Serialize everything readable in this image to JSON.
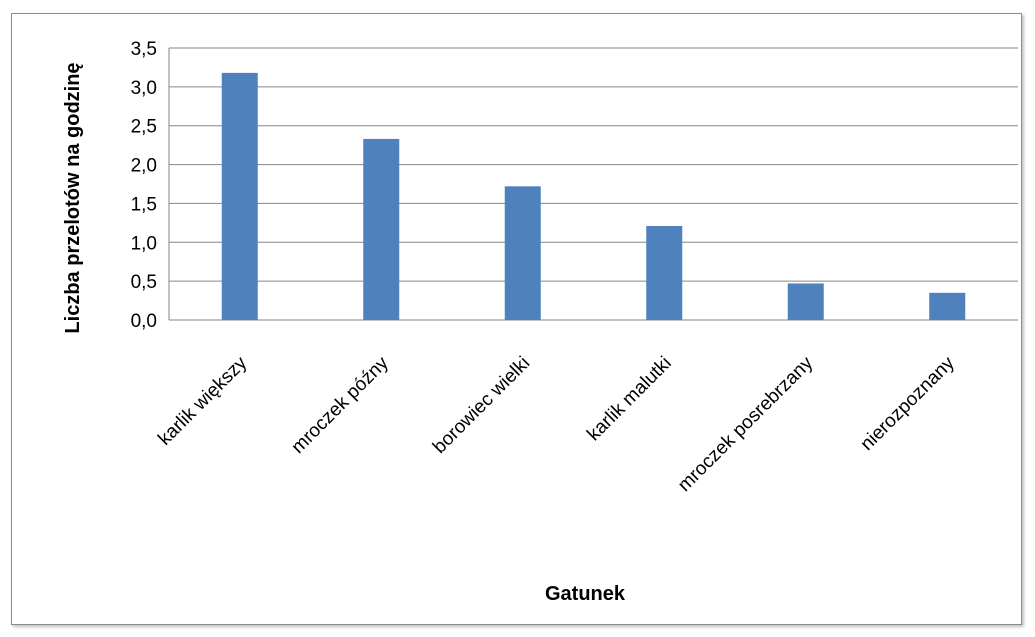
{
  "chart_data": {
    "type": "bar",
    "title": "",
    "xlabel": "Gatunek",
    "ylabel": "Liczba przelotów na godzinę",
    "categories": [
      "karlik większy",
      "mroczek późny",
      "borowiec wielki",
      "karlik malutki",
      "mroczek posrebrzany",
      "nierozpoznany"
    ],
    "values": [
      3.18,
      2.33,
      1.72,
      1.21,
      0.47,
      0.35
    ],
    "ylim": [
      0,
      3.5
    ],
    "yticks": [
      "0,0",
      "0,5",
      "1,0",
      "1,5",
      "2,0",
      "2,5",
      "3,0",
      "3,5"
    ],
    "grid": true,
    "legend": "none",
    "bar_color": "#4f81bd",
    "grid_color": "#868686"
  }
}
